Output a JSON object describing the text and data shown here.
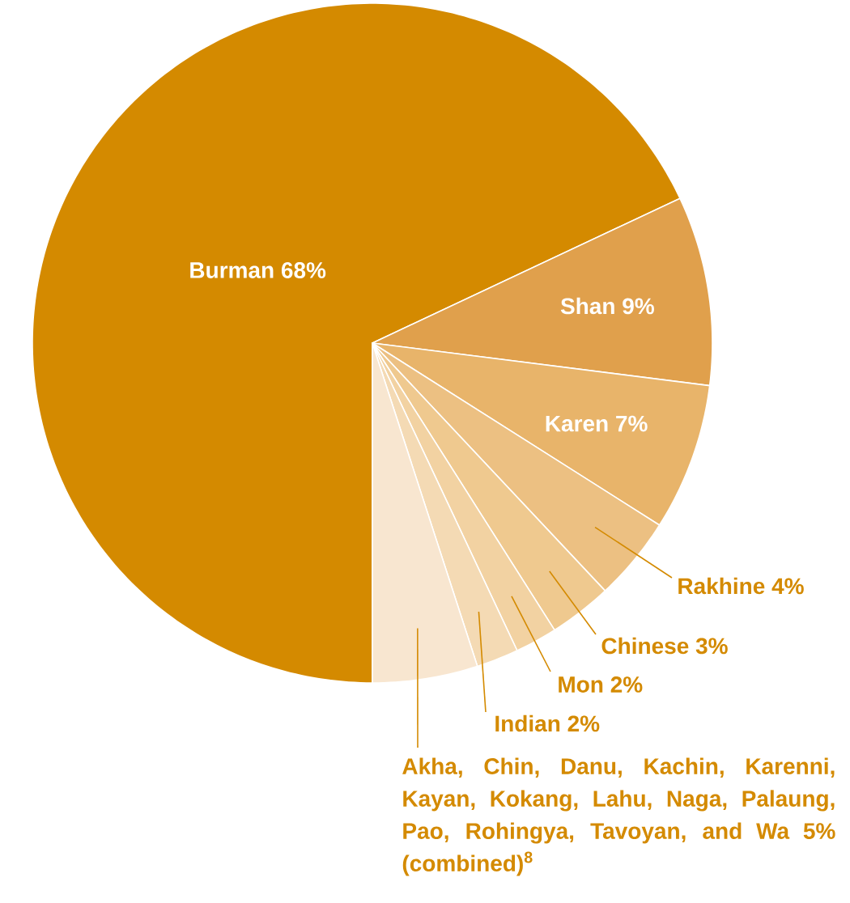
{
  "chart_data": {
    "type": "pie",
    "categories": [
      "Burman",
      "Shan",
      "Karen",
      "Rakhine",
      "Chinese",
      "Mon",
      "Indian",
      "Akha, Chin, Danu, Kachin, Karenni, Kayan, Kokang, Lahu, Naga, Palaung, Pao, Rohingya, Tavoyan, and Wa"
    ],
    "values": [
      68,
      9,
      7,
      4,
      3,
      2,
      2,
      5
    ],
    "value_labels": [
      "68%",
      "9%",
      "7%",
      "4%",
      "3%",
      "2%",
      "2%",
      "5% (combined)$^{8}$"
    ],
    "colors": [
      "#d48a00",
      "#e0a04c",
      "#e8b46a",
      "#ecc082",
      "#efc98f",
      "#f2d2a2",
      "#f4dab4",
      "#f8e6d0"
    ]
  }
}
